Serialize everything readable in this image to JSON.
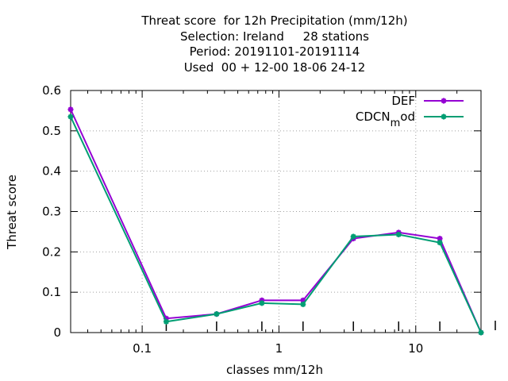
{
  "chart_data": {
    "type": "line",
    "title_lines": [
      "Threat score  for 12h Precipitation (mm/12h)",
      "Selection: Ireland     28 stations",
      "Period: 20191101-20191114",
      "Used  00 + 12-00 18-06 24-12"
    ],
    "xlabel": "classes mm/12h",
    "ylabel": "Threat score",
    "x_scale": "log",
    "xlim": [
      0.03,
      30
    ],
    "ylim": [
      0,
      0.6
    ],
    "x_ticks": [
      {
        "value": 0.1,
        "label": "0.1"
      },
      {
        "value": 1,
        "label": "1"
      },
      {
        "value": 10,
        "label": "10"
      }
    ],
    "y_ticks": [
      {
        "value": 0,
        "label": "0"
      },
      {
        "value": 0.1,
        "label": "0.1"
      },
      {
        "value": 0.2,
        "label": "0.2"
      },
      {
        "value": 0.3,
        "label": "0.3"
      },
      {
        "value": 0.4,
        "label": "0.4"
      },
      {
        "value": 0.5,
        "label": "0.5"
      },
      {
        "value": 0.6,
        "label": "0.6"
      }
    ],
    "grid": true,
    "legend_position": "top-right",
    "x": [
      0.03,
      0.15,
      0.35,
      0.75,
      1.5,
      3.5,
      7.5,
      15,
      30
    ],
    "series": [
      {
        "name": "DEF",
        "color": "#9400d3",
        "values": [
          0.553,
          0.035,
          0.046,
          0.08,
          0.08,
          0.233,
          0.248,
          0.233,
          0.0
        ]
      },
      {
        "name": "CDCN_mod",
        "name_main": "CDCN",
        "name_sub": "m",
        "name_tail": "od",
        "color": "#009e73",
        "values": [
          0.535,
          0.027,
          0.046,
          0.073,
          0.07,
          0.238,
          0.243,
          0.223,
          0.0
        ]
      }
    ]
  }
}
